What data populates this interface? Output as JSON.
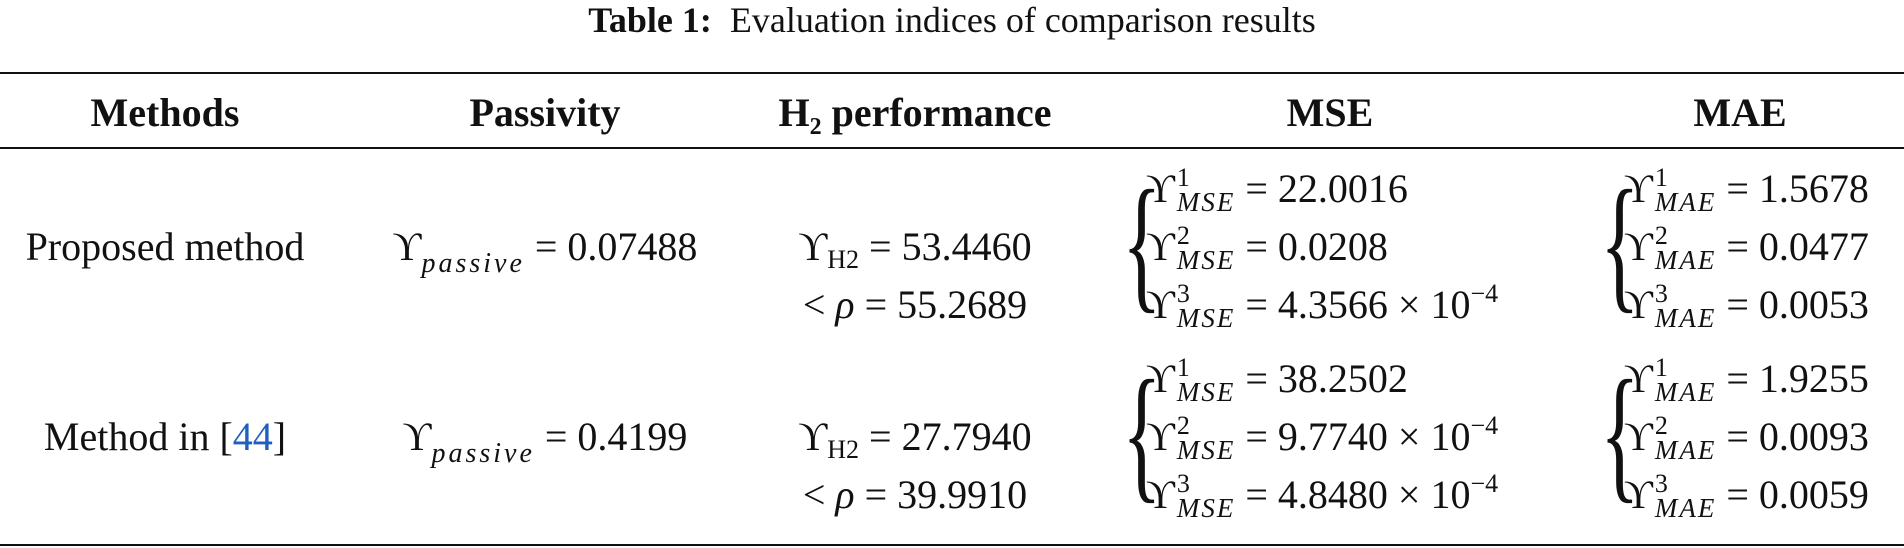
{
  "caption": {
    "label": "Table 1:",
    "text": "Evaluation indices of comparison results"
  },
  "headers": {
    "methods": "Methods",
    "passivity": "Passivity",
    "h2_prefix": "H",
    "h2_sub": "2",
    "h2_suffix": " performance",
    "mse": "MSE",
    "mae": "MAE"
  },
  "rows": [
    {
      "method": "Proposed method",
      "passivity_sub": "passive",
      "passivity_value": "= 0.07488",
      "h2_value": "= 53.4460",
      "rho_value": "= 55.2689",
      "mse": [
        {
          "sup": "1",
          "value": "= 22.0016"
        },
        {
          "sup": "2",
          "value": "= 0.0208"
        },
        {
          "sup": "3",
          "value": "= 4.3566 × 10",
          "exp": "−4"
        }
      ],
      "mae": [
        {
          "sup": "1",
          "value": "= 1.5678"
        },
        {
          "sup": "2",
          "value": "= 0.0477"
        },
        {
          "sup": "3",
          "value": "= 0.0053"
        }
      ]
    },
    {
      "method_prefix": "Method in [",
      "method_cite": "44",
      "method_suffix": "]",
      "passivity_sub": "passive",
      "passivity_value": "= 0.4199",
      "h2_value": "= 27.7940",
      "rho_value": "= 39.9910",
      "mse": [
        {
          "sup": "1",
          "value": "= 38.2502"
        },
        {
          "sup": "2",
          "value": "= 9.7740 × 10",
          "exp": "−4"
        },
        {
          "sup": "3",
          "value": "= 4.8480 × 10",
          "exp": "−4"
        }
      ],
      "mae": [
        {
          "sup": "1",
          "value": "= 1.9255"
        },
        {
          "sup": "2",
          "value": "= 0.0093"
        },
        {
          "sup": "3",
          "value": "= 0.0059"
        }
      ]
    }
  ],
  "symbols": {
    "upsilon": "ϒ",
    "lt": "<",
    "rho": "ρ",
    "h2_sub": "H2",
    "mse_sub": "MSE",
    "mae_sub": "MAE",
    "brace": "{"
  }
}
